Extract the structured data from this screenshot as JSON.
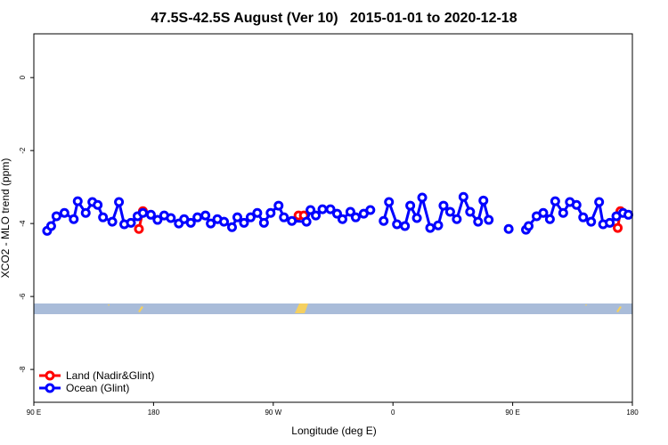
{
  "chart_data": {
    "type": "line",
    "title": "47.5S-42.5S August (Ver 10)   2015-01-01 to 2020-12-18",
    "xlabel": "Longitude (deg E)",
    "ylabel": "XCO2 - MLO trend (ppm)",
    "xlim": [
      90,
      540
    ],
    "ylim": [
      -8.9,
      1.2
    ],
    "xticks": [
      {
        "value": 90,
        "label": "90 E"
      },
      {
        "value": 180,
        "label": "180"
      },
      {
        "value": 270,
        "label": "90 W"
      },
      {
        "value": 360,
        "label": "0"
      },
      {
        "value": 450,
        "label": "90 E"
      },
      {
        "value": 540,
        "label": "180"
      }
    ],
    "yticks": [
      0,
      -2,
      -4,
      -6,
      -8
    ],
    "legend": "bottom-left",
    "series": [
      {
        "name": "Land (Nadir&Glint)",
        "color": "#ff0000",
        "x": [
          169,
          172,
          null,
          289,
          293,
          null,
          529,
          531
        ],
        "values": [
          -4.15,
          -3.66,
          null,
          -3.78,
          -3.78,
          null,
          -4.12,
          -3.66
        ]
      },
      {
        "name": "Ocean (Glint)",
        "color": "#0000ff",
        "x": [
          100,
          103,
          107,
          113,
          120,
          123,
          129,
          134,
          138,
          142,
          149,
          154,
          158,
          163,
          168,
          172,
          178,
          183,
          188,
          193,
          199,
          203,
          208,
          213,
          219,
          223,
          228,
          233,
          239,
          243,
          248,
          253,
          258,
          263,
          268,
          274,
          278,
          284,
          295,
          298,
          302,
          307,
          313,
          318,
          322,
          328,
          332,
          338,
          343,
          null,
          353,
          357,
          363,
          369,
          373,
          378,
          382,
          388,
          394,
          398,
          403,
          408,
          413,
          418,
          424,
          428,
          432,
          null,
          447,
          null,
          460,
          462,
          468,
          473,
          478,
          482,
          488,
          493,
          498,
          503,
          509,
          515,
          518,
          523,
          528,
          533,
          537
        ],
        "values": [
          -4.2,
          -4.07,
          -3.8,
          -3.71,
          -3.88,
          -3.39,
          -3.71,
          -3.41,
          -3.49,
          -3.83,
          -3.95,
          -3.41,
          -4.02,
          -3.98,
          -3.8,
          -3.71,
          -3.76,
          -3.9,
          -3.78,
          -3.85,
          -4.0,
          -3.88,
          -3.98,
          -3.83,
          -3.78,
          -4.0,
          -3.88,
          -3.95,
          -4.1,
          -3.83,
          -3.98,
          -3.83,
          -3.71,
          -3.98,
          -3.71,
          -3.51,
          -3.83,
          -3.93,
          -3.95,
          -3.63,
          -3.78,
          -3.61,
          -3.61,
          -3.73,
          -3.88,
          -3.68,
          -3.83,
          -3.73,
          -3.63,
          null,
          -3.93,
          -3.41,
          -4.02,
          -4.07,
          -3.51,
          -3.85,
          -3.29,
          -4.12,
          -4.05,
          -3.51,
          -3.68,
          -3.88,
          -3.27,
          -3.68,
          -3.95,
          -3.37,
          -3.9,
          null,
          -4.15,
          null,
          -4.17,
          -4.07,
          -3.8,
          -3.71,
          -3.88,
          -3.39,
          -3.71,
          -3.41,
          -3.49,
          -3.83,
          -3.95,
          -3.41,
          -4.02,
          -3.98,
          -3.8,
          -3.71,
          -3.76
        ]
      }
    ]
  }
}
